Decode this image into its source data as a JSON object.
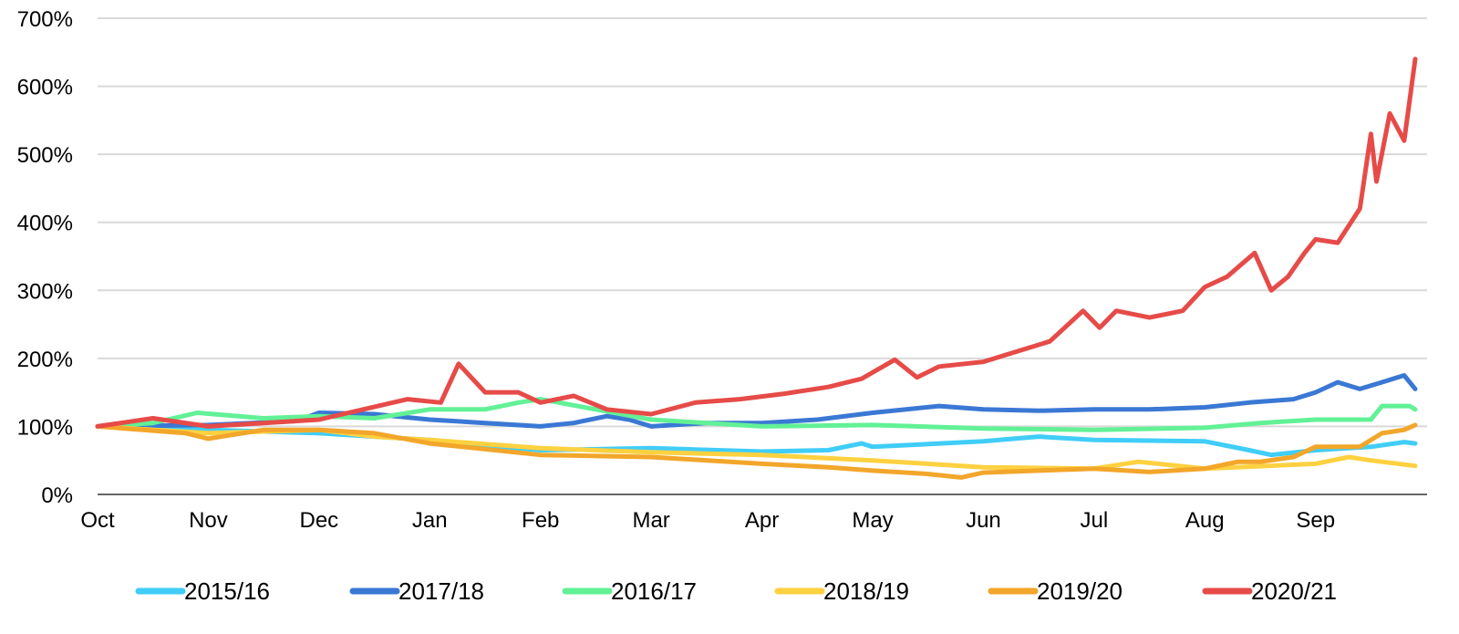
{
  "chart_data": {
    "type": "line",
    "title": "",
    "xlabel": "",
    "ylabel": "",
    "ylim": [
      0,
      700
    ],
    "xlim": [
      0,
      11.9
    ],
    "grid": true,
    "legend_placement": "bottom",
    "y_ticks": [
      0,
      100,
      200,
      300,
      400,
      500,
      600,
      700
    ],
    "y_tick_labels": [
      "0%",
      "100%",
      "200%",
      "300%",
      "400%",
      "500%",
      "600%",
      "700%"
    ],
    "x_tick_labels": [
      "Oct",
      "Nov",
      "Dec",
      "Jan",
      "Feb",
      "Mar",
      "Apr",
      "May",
      "Jun",
      "Jul",
      "Aug",
      "Sep"
    ],
    "x_unit": "months since October",
    "series": [
      {
        "name": "2015/16",
        "color": "#40cdf8",
        "points": [
          [
            0,
            100
          ],
          [
            1,
            95
          ],
          [
            2,
            90
          ],
          [
            2.5,
            85
          ],
          [
            3,
            80
          ],
          [
            4,
            65
          ],
          [
            5,
            68
          ],
          [
            6,
            63
          ],
          [
            6.6,
            65
          ],
          [
            6.9,
            75
          ],
          [
            7,
            70
          ],
          [
            8,
            78
          ],
          [
            8.5,
            85
          ],
          [
            9,
            80
          ],
          [
            10,
            78
          ],
          [
            10.4,
            65
          ],
          [
            10.6,
            58
          ],
          [
            11,
            65
          ],
          [
            11.5,
            70
          ],
          [
            11.8,
            77
          ],
          [
            11.9,
            75
          ]
        ]
      },
      {
        "name": "2017/18",
        "color": "#3a78d4",
        "points": [
          [
            0,
            100
          ],
          [
            1,
            102
          ],
          [
            1.8,
            108
          ],
          [
            2,
            120
          ],
          [
            2.5,
            118
          ],
          [
            3,
            110
          ],
          [
            3.5,
            105
          ],
          [
            4,
            100
          ],
          [
            4.3,
            105
          ],
          [
            4.6,
            115
          ],
          [
            4.8,
            110
          ],
          [
            5,
            100
          ],
          [
            5.5,
            105
          ],
          [
            6,
            105
          ],
          [
            6.5,
            110
          ],
          [
            7,
            120
          ],
          [
            7.6,
            130
          ],
          [
            8,
            125
          ],
          [
            8.5,
            123
          ],
          [
            9,
            125
          ],
          [
            9.5,
            125
          ],
          [
            10,
            128
          ],
          [
            10.4,
            135
          ],
          [
            10.8,
            140
          ],
          [
            11,
            150
          ],
          [
            11.2,
            165
          ],
          [
            11.4,
            155
          ],
          [
            11.6,
            165
          ],
          [
            11.8,
            175
          ],
          [
            11.9,
            155
          ]
        ]
      },
      {
        "name": "2016/17",
        "color": "#62f196",
        "points": [
          [
            0,
            100
          ],
          [
            0.5,
            105
          ],
          [
            0.9,
            120
          ],
          [
            1.5,
            112
          ],
          [
            2,
            115
          ],
          [
            2.5,
            112
          ],
          [
            3,
            125
          ],
          [
            3.5,
            125
          ],
          [
            3.8,
            135
          ],
          [
            4,
            140
          ],
          [
            4.5,
            125
          ],
          [
            5,
            110
          ],
          [
            5.5,
            105
          ],
          [
            6,
            100
          ],
          [
            7,
            102
          ],
          [
            8,
            97
          ],
          [
            9,
            95
          ],
          [
            10,
            98
          ],
          [
            10.5,
            105
          ],
          [
            11,
            110
          ],
          [
            11.5,
            110
          ],
          [
            11.6,
            130
          ],
          [
            11.85,
            130
          ],
          [
            11.9,
            125
          ]
        ]
      },
      {
        "name": "2018/19",
        "color": "#fed140",
        "points": [
          [
            0,
            100
          ],
          [
            1,
            90
          ],
          [
            2,
            95
          ],
          [
            2.5,
            85
          ],
          [
            3,
            80
          ],
          [
            4,
            68
          ],
          [
            5,
            62
          ],
          [
            6,
            58
          ],
          [
            7,
            50
          ],
          [
            8,
            40
          ],
          [
            9,
            38
          ],
          [
            9.4,
            48
          ],
          [
            10,
            38
          ],
          [
            11,
            45
          ],
          [
            11.3,
            55
          ],
          [
            11.5,
            50
          ],
          [
            11.9,
            42
          ]
        ]
      },
      {
        "name": "2019/20",
        "color": "#f2a62a",
        "points": [
          [
            0,
            100
          ],
          [
            0.8,
            90
          ],
          [
            1,
            82
          ],
          [
            1.5,
            95
          ],
          [
            2,
            95
          ],
          [
            2.5,
            90
          ],
          [
            3,
            75
          ],
          [
            4,
            58
          ],
          [
            5,
            55
          ],
          [
            6,
            45
          ],
          [
            6.6,
            40
          ],
          [
            7,
            35
          ],
          [
            7.5,
            30
          ],
          [
            7.8,
            25
          ],
          [
            8,
            32
          ],
          [
            8.5,
            35
          ],
          [
            9,
            38
          ],
          [
            9.5,
            33
          ],
          [
            10,
            38
          ],
          [
            10.3,
            48
          ],
          [
            10.5,
            48
          ],
          [
            10.8,
            55
          ],
          [
            11,
            70
          ],
          [
            11.4,
            70
          ],
          [
            11.6,
            90
          ],
          [
            11.8,
            95
          ],
          [
            11.9,
            102
          ]
        ]
      },
      {
        "name": "2020/21",
        "color": "#e64b48",
        "points": [
          [
            0,
            100
          ],
          [
            0.5,
            112
          ],
          [
            1,
            100
          ],
          [
            1.5,
            105
          ],
          [
            2,
            110
          ],
          [
            2.4,
            125
          ],
          [
            2.8,
            140
          ],
          [
            3.1,
            135
          ],
          [
            3.26,
            192
          ],
          [
            3.5,
            150
          ],
          [
            3.8,
            150
          ],
          [
            4,
            135
          ],
          [
            4.3,
            145
          ],
          [
            4.6,
            125
          ],
          [
            5,
            118
          ],
          [
            5.4,
            135
          ],
          [
            5.8,
            140
          ],
          [
            6.2,
            148
          ],
          [
            6.6,
            158
          ],
          [
            6.9,
            170
          ],
          [
            7.2,
            198
          ],
          [
            7.4,
            172
          ],
          [
            7.6,
            188
          ],
          [
            8,
            195
          ],
          [
            8.3,
            210
          ],
          [
            8.6,
            225
          ],
          [
            8.9,
            270
          ],
          [
            9.05,
            245
          ],
          [
            9.2,
            270
          ],
          [
            9.5,
            260
          ],
          [
            9.8,
            270
          ],
          [
            10,
            305
          ],
          [
            10.2,
            320
          ],
          [
            10.45,
            355
          ],
          [
            10.6,
            300
          ],
          [
            10.75,
            320
          ],
          [
            10.9,
            355
          ],
          [
            11,
            375
          ],
          [
            11.2,
            370
          ],
          [
            11.4,
            420
          ],
          [
            11.5,
            530
          ],
          [
            11.55,
            460
          ],
          [
            11.67,
            560
          ],
          [
            11.8,
            520
          ],
          [
            11.9,
            640
          ]
        ]
      }
    ]
  }
}
